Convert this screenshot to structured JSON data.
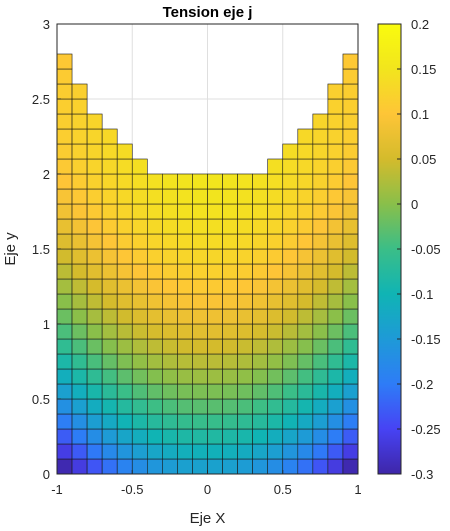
{
  "chart_data": {
    "type": "heatmap",
    "title": "Tension eje j",
    "xlabel": "Eje X",
    "ylabel": "Eje y",
    "xlim": [
      -1,
      1
    ],
    "ylim": [
      0,
      3
    ],
    "grid": true,
    "cell_size": 0.1,
    "xticks": [
      "-1",
      "-0.5",
      "0",
      "0.5",
      "1"
    ],
    "yticks": [
      "0",
      "0.5",
      "1",
      "1.5",
      "2",
      "2.5",
      "3"
    ],
    "column_x_ranges": [
      [
        -1.0,
        -0.9
      ],
      [
        -0.9,
        -0.8
      ],
      [
        -0.8,
        -0.7
      ],
      [
        -0.7,
        -0.6
      ],
      [
        -0.6,
        -0.5
      ],
      [
        -0.5,
        -0.4
      ],
      [
        -0.4,
        -0.3
      ],
      [
        -0.3,
        -0.2
      ],
      [
        -0.2,
        -0.1
      ],
      [
        -0.1,
        0.0
      ],
      [
        0.0,
        0.1
      ],
      [
        0.1,
        0.2
      ],
      [
        0.2,
        0.3
      ],
      [
        0.3,
        0.4
      ],
      [
        0.4,
        0.5
      ],
      [
        0.5,
        0.6
      ],
      [
        0.6,
        0.7
      ],
      [
        0.7,
        0.8
      ],
      [
        0.8,
        0.9
      ],
      [
        0.9,
        1.0
      ]
    ],
    "column_heights": [
      2.8,
      2.6,
      2.4,
      2.3,
      2.2,
      2.1,
      2.0,
      2.0,
      2.0,
      2.0,
      2.0,
      2.0,
      2.0,
      2.0,
      2.1,
      2.2,
      2.3,
      2.4,
      2.6,
      2.8
    ],
    "value_model": "value(x,y) ≈ 0.15 - 0.30*(1 - y/2)^2 - 0.18*x^2 + 0.18*x^2*(y/2.8)",
    "colorbar": {
      "label": "",
      "range": [
        -0.3,
        0.2
      ],
      "ticks": [
        "0.2",
        "0.15",
        "0.1",
        "0.05",
        "0",
        "-0.05",
        "-0.1",
        "-0.15",
        "-0.2",
        "-0.25",
        "-0.3"
      ],
      "colormap": "parula",
      "colormap_stops": [
        "#3e26a8",
        "#4743f4",
        "#2e7cf7",
        "#1e9ad7",
        "#10b4b4",
        "#3bbe87",
        "#89bf4a",
        "#d4bb2c",
        "#fec537",
        "#f2e51d",
        "#f9fb0e"
      ]
    }
  }
}
